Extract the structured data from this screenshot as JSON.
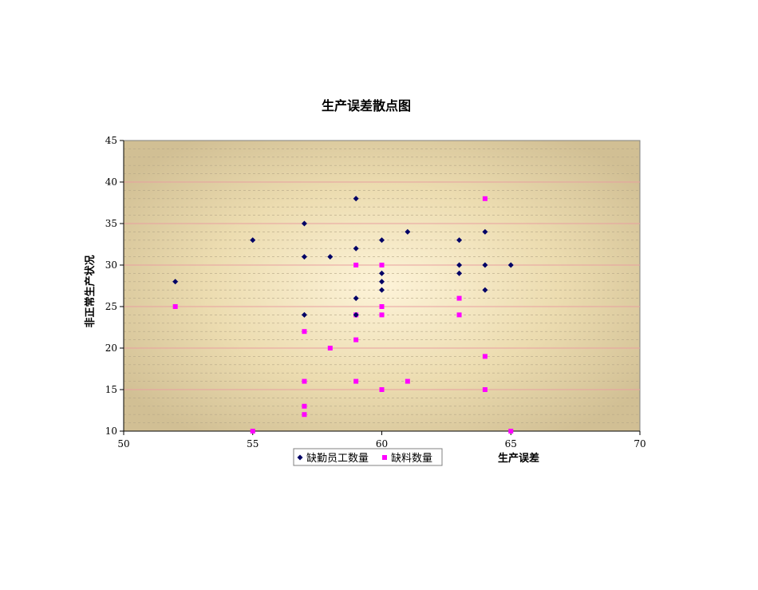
{
  "chart_data": {
    "type": "scatter",
    "title": "生产误差散点图",
    "xlabel": "生产误差",
    "ylabel": "非正常生产状况",
    "xlim": [
      50,
      70
    ],
    "ylim": [
      10,
      45
    ],
    "xticks": [
      50,
      55,
      60,
      65,
      70
    ],
    "yticks": [
      10,
      15,
      20,
      25,
      30,
      35,
      40,
      45
    ],
    "grid": true,
    "legend_position": "bottom",
    "series": [
      {
        "name": "缺勤员工数量",
        "color": "#000066",
        "marker": "diamond",
        "points": [
          [
            52,
            28
          ],
          [
            55,
            33
          ],
          [
            57,
            35
          ],
          [
            57,
            31
          ],
          [
            57,
            24
          ],
          [
            58,
            31
          ],
          [
            59,
            38
          ],
          [
            59,
            32
          ],
          [
            59,
            26
          ],
          [
            59,
            24
          ],
          [
            60,
            33
          ],
          [
            60,
            29
          ],
          [
            60,
            28
          ],
          [
            60,
            27
          ],
          [
            61,
            34
          ],
          [
            63,
            33
          ],
          [
            63,
            30
          ],
          [
            63,
            29
          ],
          [
            64,
            34
          ],
          [
            64,
            30
          ],
          [
            64,
            27
          ],
          [
            65,
            30
          ]
        ]
      },
      {
        "name": "缺料数量",
        "color": "#ff00ff",
        "marker": "square",
        "points": [
          [
            52,
            25
          ],
          [
            55,
            10
          ],
          [
            57,
            22
          ],
          [
            57,
            16
          ],
          [
            57,
            13
          ],
          [
            57,
            12
          ],
          [
            58,
            20
          ],
          [
            59,
            30
          ],
          [
            59,
            24
          ],
          [
            59,
            21
          ],
          [
            59,
            16
          ],
          [
            60,
            30
          ],
          [
            60,
            25
          ],
          [
            60,
            24
          ],
          [
            60,
            15
          ],
          [
            61,
            16
          ],
          [
            63,
            26
          ],
          [
            63,
            24
          ],
          [
            64,
            38
          ],
          [
            64,
            19
          ],
          [
            64,
            15
          ],
          [
            65,
            10
          ]
        ]
      }
    ]
  }
}
